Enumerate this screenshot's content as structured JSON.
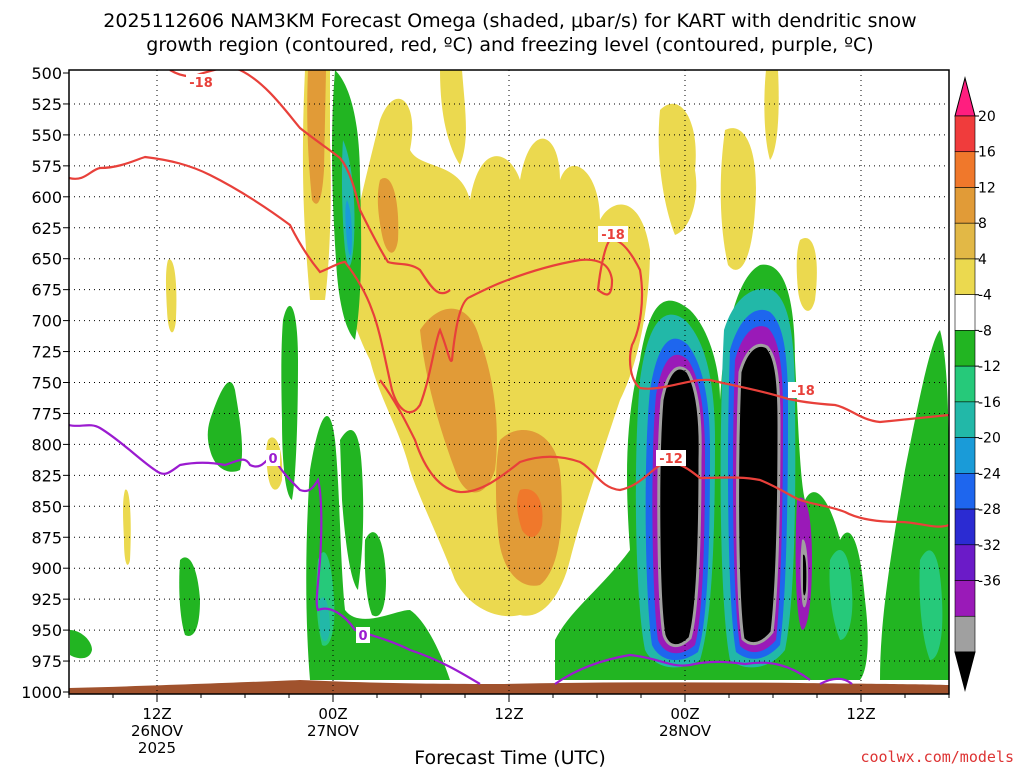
{
  "chart_data": {
    "type": "heatmap",
    "title_line1": "2025112606 NAM3KM Forecast Omega (shaded, μbar/s) for KART with dendritic snow",
    "title_line2": "growth region (contoured, red, ºC) and freezing level (contoured, purple, ºC)",
    "xlabel": "Forecast Time (UTC)",
    "credit": "coolwx.com/models",
    "y_levels": [
      "500",
      "525",
      "550",
      "575",
      "600",
      "625",
      "650",
      "675",
      "700",
      "725",
      "750",
      "775",
      "800",
      "825",
      "850",
      "875",
      "900",
      "925",
      "950",
      "975",
      "1000"
    ],
    "x_ticks": [
      {
        "label": "12Z",
        "sub1": "26NOV",
        "sub2": "2025",
        "hour": 12
      },
      {
        "label": "00Z",
        "sub1": "27NOV",
        "sub2": "",
        "hour": 24
      },
      {
        "label": "12Z",
        "sub1": "",
        "sub2": "",
        "hour": 36
      },
      {
        "label": "00Z",
        "sub1": "28NOV",
        "sub2": "",
        "hour": 48
      },
      {
        "label": "12Z",
        "sub1": "",
        "sub2": "",
        "hour": 60
      }
    ],
    "x_range_hours": [
      6,
      66
    ],
    "colorbar": {
      "ticks": [
        "20",
        "16",
        "12",
        "8",
        "4",
        "-4",
        "-8",
        "-12",
        "-16",
        "-20",
        "-24",
        "-28",
        "-32",
        "-36"
      ],
      "colors": [
        "#ff1e7f",
        "#f03c3c",
        "#f0782b",
        "#e19b37",
        "#e2b846",
        "#ebd94f",
        "#ffffff",
        "#22b522",
        "#26c97a",
        "#22b8a8",
        "#1a9bd8",
        "#1e66ee",
        "#2b2bd2",
        "#6b1bc8",
        "#9a1ab8",
        "#a0a0a0",
        "#000000"
      ]
    },
    "contours": {
      "dendritic_labels": [
        "-18",
        "-18",
        "-18",
        "-12"
      ],
      "freezing_labels": [
        "0",
        "0"
      ]
    }
  }
}
